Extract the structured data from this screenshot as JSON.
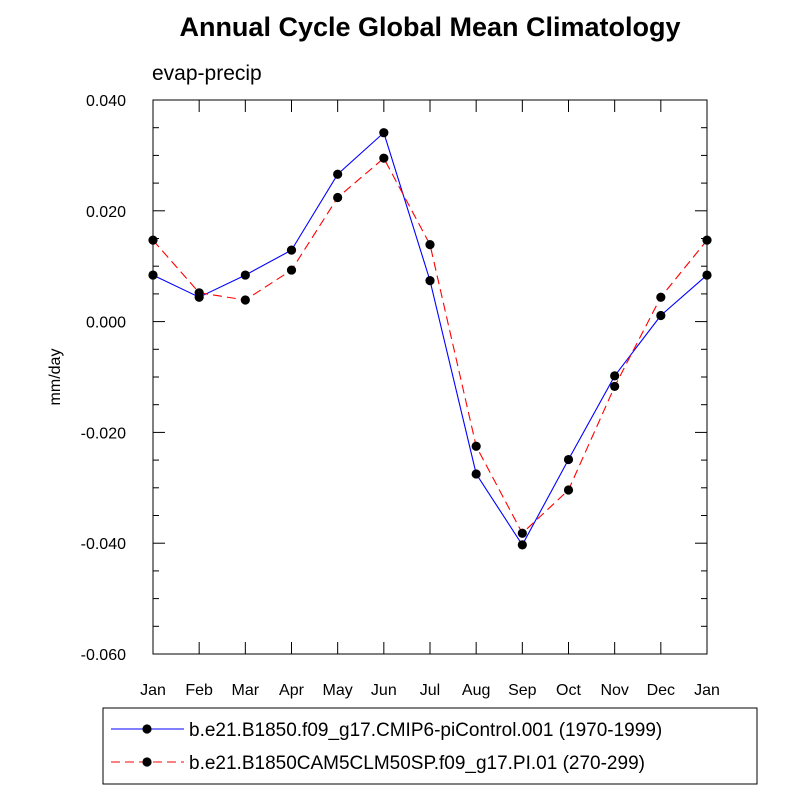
{
  "chart_data": {
    "type": "line",
    "title": "Annual Cycle Global Mean Climatology",
    "subtitle": "evap-precip",
    "xlabel": "",
    "ylabel": "mm/day",
    "categories": [
      "Jan",
      "Feb",
      "Mar",
      "Apr",
      "May",
      "Jun",
      "Jul",
      "Aug",
      "Sep",
      "Oct",
      "Nov",
      "Dec",
      "Jan"
    ],
    "ylim": [
      -0.06,
      0.04
    ],
    "yticks": [
      -0.06,
      -0.04,
      -0.02,
      0.0,
      0.02,
      0.04
    ],
    "ytick_labels": [
      "-0.060",
      "-0.040",
      "-0.020",
      "0.000",
      "0.020",
      "0.040"
    ],
    "y_minor_step": 0.005,
    "grid": false,
    "legend_position": "bottom",
    "series": [
      {
        "name": "b.e21.B1850.f09_g17.CMIP6-piControl.001 (1970-1999)",
        "color": "#0000ff",
        "dash": "solid",
        "marker": "circle",
        "values": [
          0.0084,
          0.0044,
          0.0084,
          0.0129,
          0.0266,
          0.0341,
          0.0074,
          -0.0275,
          -0.0403,
          -0.0249,
          -0.0098,
          0.0011,
          0.0084
        ]
      },
      {
        "name": "b.e21.B1850CAM5CLM50SP.f09_g17.PI.01 (270-299)",
        "color": "#ff0000",
        "dash": "dashed",
        "marker": "circle",
        "values": [
          0.0147,
          0.0052,
          0.0039,
          0.0093,
          0.0224,
          0.0295,
          0.0139,
          -0.0225,
          -0.0382,
          -0.0304,
          -0.0117,
          0.0044,
          0.0147
        ]
      }
    ]
  }
}
